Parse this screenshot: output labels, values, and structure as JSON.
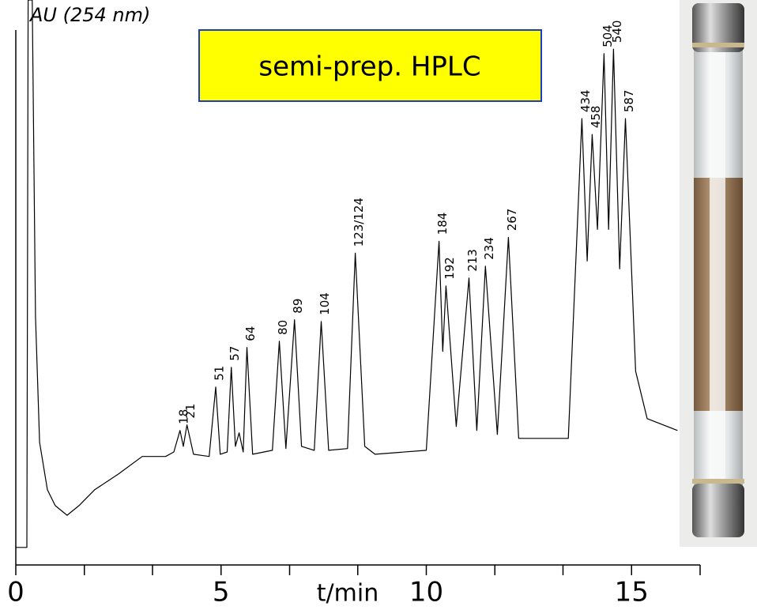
{
  "chart_data": {
    "type": "line",
    "title": "semi-prep. HPLC",
    "ylabel": "AU (254 nm)",
    "xlabel": "t/min",
    "xlim": [
      0,
      16.67
    ],
    "ylim": [
      0,
      100
    ],
    "xticks": [
      0,
      5,
      10,
      15
    ],
    "xminorticks": [
      1.67,
      3.33,
      6.67,
      8.33,
      11.67,
      13.33,
      16.67
    ],
    "color": "#000000",
    "x": [
      0,
      0.27,
      0.3,
      0.4,
      0.48,
      0.58,
      0.77,
      0.96,
      1.25,
      1.54,
      1.92,
      2.5,
      3.08,
      3.65,
      3.85,
      4.0,
      4.08,
      4.17,
      4.33,
      4.71,
      4.87,
      4.98,
      5.15,
      5.25,
      5.35,
      5.44,
      5.54,
      5.63,
      5.77,
      6.25,
      6.42,
      6.58,
      6.79,
      6.96,
      7.27,
      7.44,
      7.62,
      8.08,
      8.27,
      8.5,
      8.75,
      10.0,
      10.31,
      10.4,
      10.48,
      10.73,
      11.04,
      11.23,
      11.44,
      11.73,
      12.0,
      12.25,
      13.46,
      13.79,
      13.92,
      14.04,
      14.17,
      14.33,
      14.44,
      14.56,
      14.71,
      14.85,
      15.1,
      15.38,
      16.12
    ],
    "values": [
      3.1,
      3.1,
      100,
      100,
      44.1,
      21.7,
      13.3,
      10.5,
      8.8,
      10.5,
      13.3,
      16.1,
      19.2,
      19.2,
      20.0,
      23.8,
      21.0,
      24.8,
      19.6,
      19.2,
      31.5,
      19.6,
      20.0,
      35.0,
      21.0,
      23.4,
      20.0,
      38.5,
      19.6,
      20.3,
      39.6,
      20.6,
      43.4,
      21.0,
      20.3,
      43.1,
      20.3,
      20.6,
      55.2,
      21.0,
      19.6,
      20.3,
      57.3,
      37.8,
      49.4,
      24.5,
      50.8,
      23.8,
      52.9,
      23.1,
      58.0,
      22.4,
      22.4,
      79.0,
      53.8,
      76.2,
      59.4,
      90.5,
      59.4,
      91.3,
      52.4,
      79.0,
      34.3,
      25.9,
      23.8
    ],
    "peaks": [
      {
        "label": "18",
        "x": 4.0
      },
      {
        "label": "21",
        "x": 4.17
      },
      {
        "label": "51",
        "x": 4.87
      },
      {
        "label": "57",
        "x": 5.25
      },
      {
        "label": "64",
        "x": 5.63
      },
      {
        "label": "80",
        "x": 6.42
      },
      {
        "label": "89",
        "x": 6.79
      },
      {
        "label": "104",
        "x": 7.44
      },
      {
        "label": "123/124",
        "x": 8.27
      },
      {
        "label": "184",
        "x": 10.31
      },
      {
        "label": "192",
        "x": 10.48
      },
      {
        "label": "213",
        "x": 11.04
      },
      {
        "label": "234",
        "x": 11.44
      },
      {
        "label": "267",
        "x": 12.0
      },
      {
        "label": "434",
        "x": 13.79
      },
      {
        "label": "458",
        "x": 14.04
      },
      {
        "label": "504",
        "x": 14.33
      },
      {
        "label": "540",
        "x": 14.56
      },
      {
        "label": "587",
        "x": 14.85
      }
    ]
  }
}
